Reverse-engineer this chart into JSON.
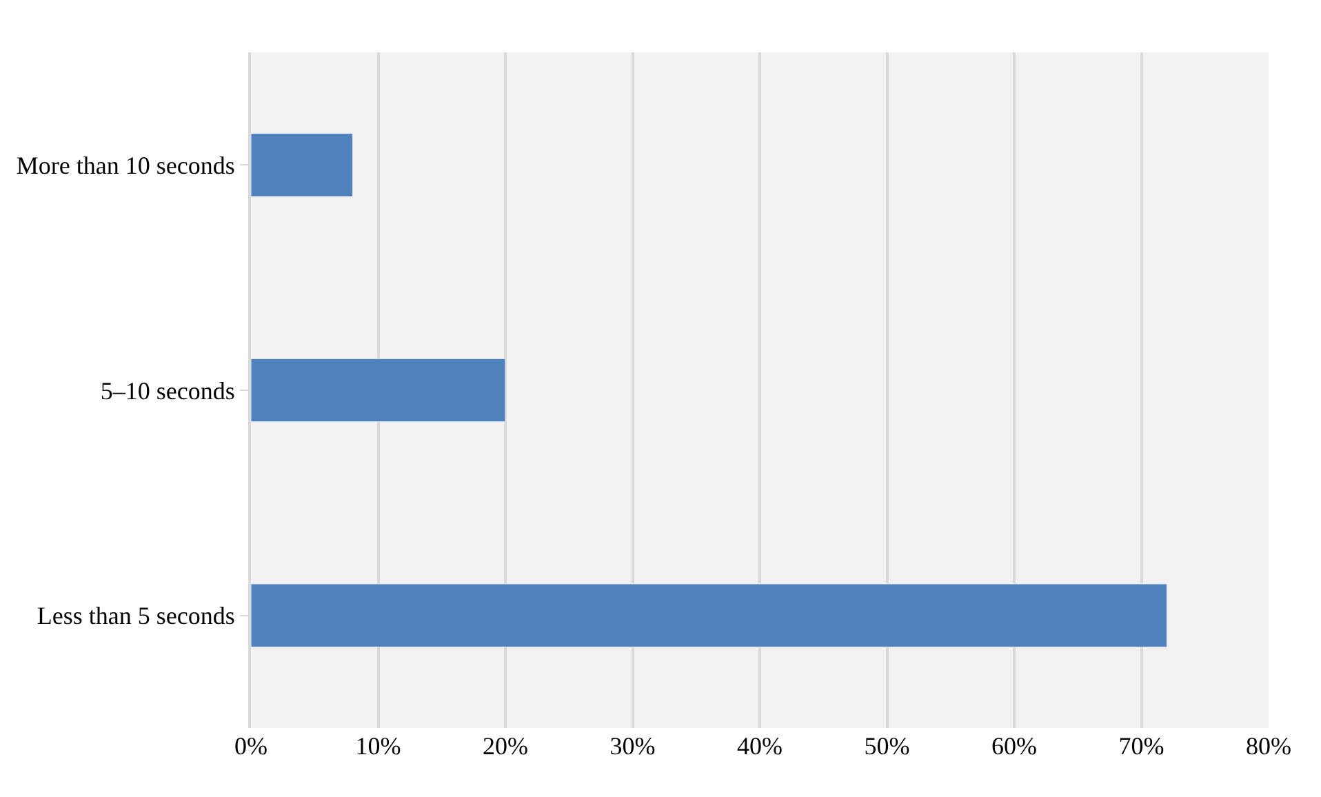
{
  "chart_data": {
    "type": "bar",
    "orientation": "horizontal",
    "categories": [
      "More than 10 seconds",
      "5–10 seconds",
      "Less than 5 seconds"
    ],
    "values": [
      8,
      20,
      72
    ],
    "color": "#4f81bd",
    "xlim": [
      0,
      80
    ],
    "xticks": [
      {
        "value": 0,
        "label": "0%"
      },
      {
        "value": 10,
        "label": "10%"
      },
      {
        "value": 20,
        "label": "20%"
      },
      {
        "value": 30,
        "label": "30%"
      },
      {
        "value": 40,
        "label": "40%"
      },
      {
        "value": 50,
        "label": "50%"
      },
      {
        "value": 60,
        "label": "60%"
      },
      {
        "value": 70,
        "label": "70%"
      },
      {
        "value": 80,
        "label": "80%"
      }
    ],
    "grid": "x"
  }
}
